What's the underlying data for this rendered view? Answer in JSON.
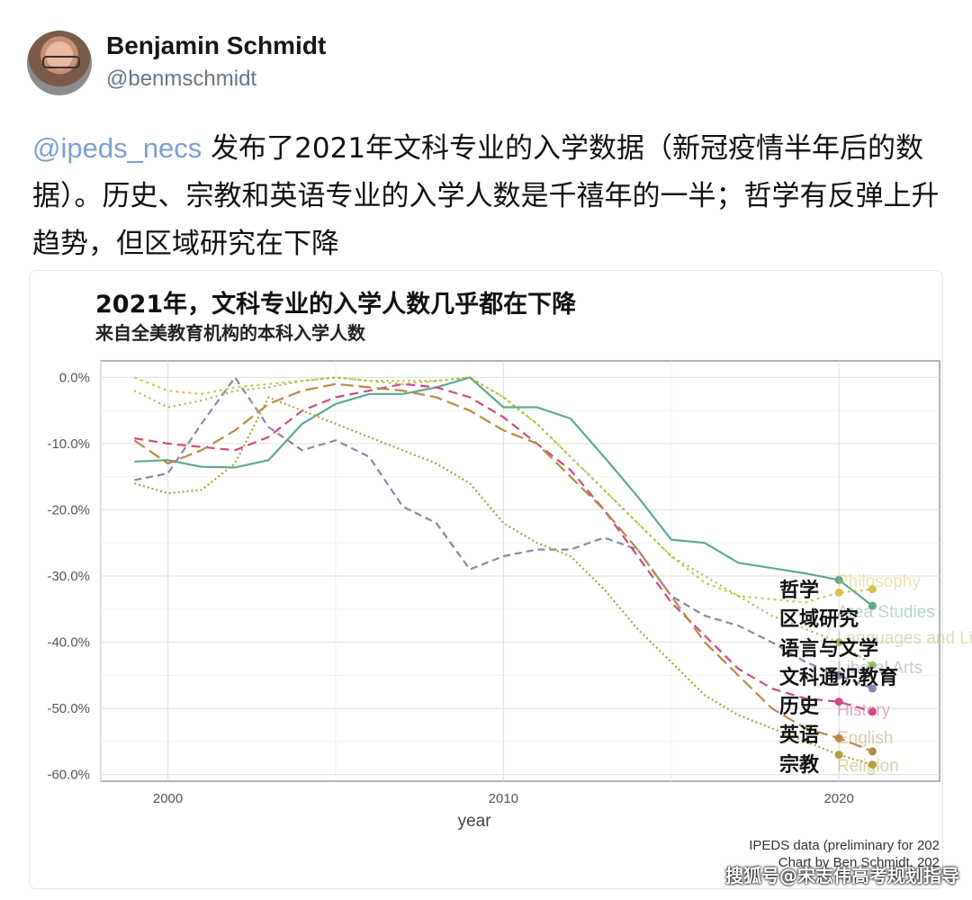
{
  "tweet": {
    "author_name": "Benjamin Schmidt",
    "author_handle": "@benmschmidt",
    "mention": "@ipeds_necs",
    "text": " 发布了2021年文科专业的入学数据（新冠疫情半年后的数据）。历史、宗教和英语专业的入学人数是千禧年的一半；哲学有反弹上升趋势，但区域研究在下降"
  },
  "chart_data": {
    "type": "line",
    "title": "2021年，文科专业的入学人数几乎都在下降",
    "subtitle": "来自全美教育机构的本科入学人数",
    "xlabel": "year",
    "ylabel": "",
    "xlim": [
      1998,
      2023
    ],
    "ylim": [
      -61,
      2.5
    ],
    "x_ticks": [
      2000,
      2010,
      2020
    ],
    "y_ticks": [
      0,
      -10,
      -20,
      -30,
      -40,
      -50,
      -60
    ],
    "y_tick_labels": [
      "0.0%",
      "-10.0%",
      "-20.0%",
      "-30.0%",
      "-40.0%",
      "-50.0%",
      "-60.0%"
    ],
    "grid": true,
    "caption": [
      "IPEDS data (preliminary for 202",
      "Chart by Ben Schmidt, 202"
    ],
    "series": [
      {
        "name": "哲学",
        "bg_label": "Philosophy",
        "color": "#d8c24a",
        "dash": "3,4",
        "x": [
          1999,
          2000,
          2001,
          2002,
          2003,
          2004,
          2005,
          2006,
          2007,
          2008,
          2009,
          2010,
          2011,
          2012,
          2013,
          2014,
          2015,
          2016,
          2017,
          2018,
          2019,
          2020,
          2021
        ],
        "y": [
          0,
          -2,
          -2.5,
          -1.5,
          -1,
          -0.5,
          0,
          -0.5,
          -1,
          -0.5,
          0,
          -3,
          -7,
          -12,
          -17,
          -22,
          -27,
          -31,
          -33,
          -33.5,
          -34,
          -32.5,
          -32
        ]
      },
      {
        "name": "区域研究",
        "bg_label": "Area Studies",
        "color": "#5daa88",
        "dash": "",
        "x": [
          1999,
          2000,
          2001,
          2002,
          2003,
          2004,
          2005,
          2006,
          2007,
          2008,
          2009,
          2010,
          2011,
          2012,
          2013,
          2014,
          2015,
          2016,
          2017,
          2018,
          2019,
          2020,
          2021
        ],
        "y": [
          -12.7,
          -12.5,
          -13.5,
          -13.6,
          -12.5,
          -7,
          -4,
          -2.5,
          -2.5,
          -1.5,
          0,
          -4.5,
          -4.5,
          -6.2,
          -12,
          -18,
          -24.5,
          -25,
          -28,
          -28.8,
          -29.6,
          -30.6,
          -34.5
        ]
      },
      {
        "name": "语言与文学",
        "bg_label": "Languages and Literature",
        "color": "#9bbf5c",
        "dash": "2,4",
        "x": [
          1999,
          2000,
          2001,
          2002,
          2003,
          2004,
          2005,
          2006,
          2007,
          2008,
          2009,
          2010,
          2011,
          2012,
          2013,
          2014,
          2015,
          2016,
          2017,
          2018,
          2019,
          2020,
          2021
        ],
        "y": [
          -2,
          -4.5,
          -3.5,
          -2,
          -1.5,
          -0.5,
          0,
          -0.5,
          -0.5,
          -0.5,
          0,
          -3,
          -7,
          -12,
          -17,
          -22,
          -27,
          -30,
          -33,
          -36,
          -38,
          -40,
          -43.5
        ]
      },
      {
        "name": "文科通识教育",
        "bg_label": "Liberal Arts",
        "color": "#8a86a8",
        "dash": "8,5",
        "x": [
          1999,
          2000,
          2001,
          2002,
          2003,
          2004,
          2005,
          2006,
          2007,
          2008,
          2009,
          2010,
          2011,
          2012,
          2013,
          2014,
          2015,
          2016,
          2017,
          2018,
          2019,
          2020,
          2021
        ],
        "y": [
          -15.5,
          -14.5,
          -7,
          0,
          -7.5,
          -11,
          -9.5,
          -12,
          -19.5,
          -22,
          -29,
          -27,
          -26,
          -26,
          -24.2,
          -26,
          -33,
          -36,
          -37.5,
          -40,
          -43,
          -45,
          -47
        ]
      },
      {
        "name": "历史",
        "bg_label": "History",
        "color": "#cf4a86",
        "dash": "10,6",
        "x": [
          1999,
          2000,
          2001,
          2002,
          2003,
          2004,
          2005,
          2006,
          2007,
          2008,
          2009,
          2010,
          2011,
          2012,
          2013,
          2014,
          2015,
          2016,
          2017,
          2018,
          2019,
          2020,
          2021
        ],
        "y": [
          -9.2,
          -10,
          -10.5,
          -11,
          -9,
          -5,
          -3,
          -2,
          -1,
          -1.5,
          -3,
          -6,
          -10,
          -14,
          -20,
          -27,
          -34,
          -39,
          -44,
          -47,
          -48.5,
          -49,
          -50.5
        ]
      },
      {
        "name": "英语",
        "bg_label": "English",
        "color": "#b8894a",
        "dash": "14,6",
        "x": [
          1999,
          2000,
          2001,
          2002,
          2003,
          2004,
          2005,
          2006,
          2007,
          2008,
          2009,
          2010,
          2011,
          2012,
          2013,
          2014,
          2015,
          2016,
          2017,
          2018,
          2019,
          2020,
          2021
        ],
        "y": [
          -9.5,
          -13,
          -11,
          -8,
          -4,
          -2,
          -1,
          -1.5,
          -2,
          -3,
          -5,
          -8,
          -10,
          -15,
          -20,
          -26,
          -33,
          -40,
          -45,
          -50,
          -53,
          -54.5,
          -56.5
        ]
      },
      {
        "name": "宗教",
        "bg_label": "Religion",
        "color": "#b0a040",
        "dash": "2,3",
        "x": [
          1999,
          2000,
          2001,
          2002,
          2003,
          2004,
          2005,
          2006,
          2007,
          2008,
          2009,
          2010,
          2011,
          2012,
          2013,
          2014,
          2015,
          2016,
          2017,
          2018,
          2019,
          2020,
          2021
        ],
        "y": [
          -16,
          -17.5,
          -17,
          -13,
          -3,
          -5,
          -7,
          -9,
          -11,
          -13,
          -16,
          -22,
          -25,
          -27,
          -32,
          -38,
          -43,
          -48,
          -51,
          -53,
          -55,
          -57,
          -58.5
        ]
      }
    ]
  },
  "watermark": "搜狐号@宋志伟高考规划指导"
}
